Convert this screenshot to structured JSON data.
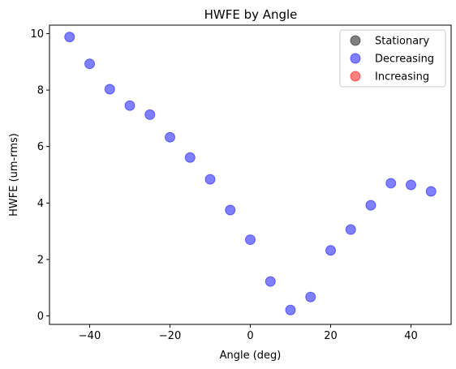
{
  "chart_data": {
    "type": "scatter",
    "title": "HWFE by Angle",
    "xlabel": "Angle (deg)",
    "ylabel": "HWFE (um-rms)",
    "xlim": [
      -50,
      50
    ],
    "ylim": [
      -0.3,
      10.3
    ],
    "xticks": [
      -40,
      -20,
      0,
      20,
      40
    ],
    "xtick_labels": [
      "−40",
      "−20",
      "0",
      "20",
      "40"
    ],
    "yticks": [
      0,
      2,
      4,
      6,
      8,
      10
    ],
    "ytick_labels": [
      "0",
      "2",
      "4",
      "6",
      "8",
      "10"
    ],
    "grid": false,
    "legend_position": "top-right",
    "series": [
      {
        "name": "Stationary",
        "color": "#000000",
        "x": [],
        "y": []
      },
      {
        "name": "Decreasing",
        "color": "#0000ff",
        "x": [
          -45,
          -40,
          -35,
          -30,
          -25,
          -20,
          -15,
          -10,
          -5,
          0,
          5,
          10,
          15,
          20,
          25,
          30,
          35,
          40,
          45
        ],
        "y": [
          9.88,
          8.93,
          8.03,
          7.45,
          7.13,
          6.33,
          5.61,
          4.84,
          3.75,
          2.7,
          1.22,
          0.21,
          0.67,
          2.32,
          3.06,
          3.92,
          4.7,
          4.64,
          4.41
        ]
      },
      {
        "name": "Increasing",
        "color": "#ff0000",
        "x": [],
        "y": []
      }
    ]
  }
}
